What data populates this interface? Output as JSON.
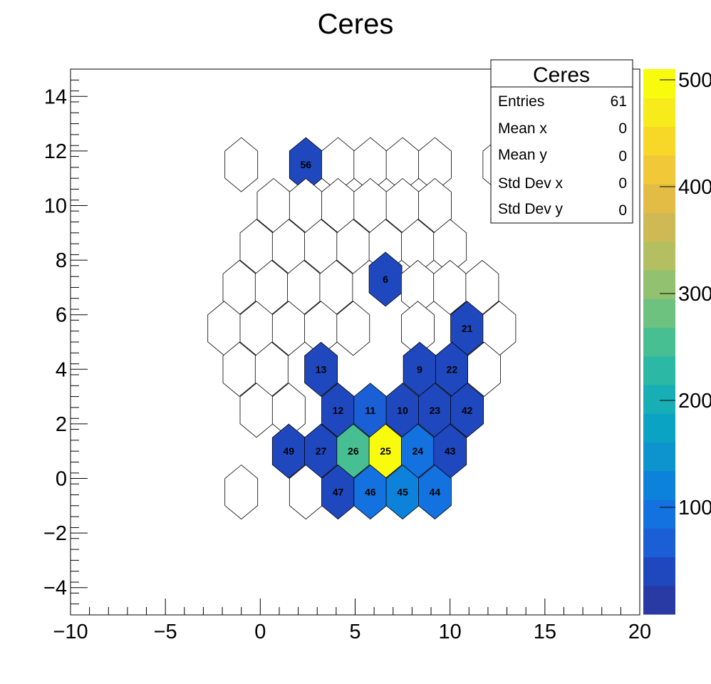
{
  "chart_data": {
    "type": "heatmap",
    "title": "Ceres",
    "xlim": [
      -10,
      20
    ],
    "ylim": [
      -5,
      15
    ],
    "x_ticks": [
      -10,
      -5,
      0,
      5,
      10,
      15,
      20
    ],
    "y_ticks": [
      -4,
      -2,
      0,
      2,
      4,
      6,
      8,
      10,
      12,
      14
    ],
    "x_tick_labels": [
      "−10",
      "−5",
      "0",
      "5",
      "10",
      "15",
      "20"
    ],
    "y_tick_labels": [
      "−4",
      "−2",
      "0",
      "2",
      "4",
      "6",
      "8",
      "10",
      "12",
      "14"
    ],
    "palette": {
      "min": 0,
      "max": 510,
      "ticks": [
        100,
        200,
        300,
        400,
        500
      ],
      "tick_labels": [
        "100",
        "200",
        "300",
        "400",
        "500"
      ],
      "colors": [
        "#2a3aa4",
        "#1f48bf",
        "#1b5fd7",
        "#1371e0",
        "#0d82da",
        "#0d94cf",
        "#0aa3c4",
        "#18aeb5",
        "#2bb8a4",
        "#48bf92",
        "#6dc280",
        "#92c26f",
        "#b3bf61",
        "#cfb955",
        "#e2bc45",
        "#f1c837",
        "#f7d829",
        "#f8eb1c",
        "#f9fb0e"
      ]
    },
    "hexagons": [
      {
        "x": -1.0,
        "y": 11.5,
        "value": 0,
        "label": ""
      },
      {
        "x": 2.4,
        "y": 11.5,
        "value": 30,
        "label": "56"
      },
      {
        "x": 4.1,
        "y": 11.5,
        "value": 0,
        "label": ""
      },
      {
        "x": 5.8,
        "y": 11.5,
        "value": 0,
        "label": ""
      },
      {
        "x": 7.5,
        "y": 11.5,
        "value": 0,
        "label": ""
      },
      {
        "x": 9.2,
        "y": 11.5,
        "value": 0,
        "label": ""
      },
      {
        "x": 0.7,
        "y": 10.0,
        "value": 0,
        "label": ""
      },
      {
        "x": 2.4,
        "y": 10.0,
        "value": 0,
        "label": ""
      },
      {
        "x": 4.1,
        "y": 10.0,
        "value": 0,
        "label": ""
      },
      {
        "x": 5.8,
        "y": 10.0,
        "value": 0,
        "label": ""
      },
      {
        "x": 7.5,
        "y": 10.0,
        "value": 0,
        "label": ""
      },
      {
        "x": 9.2,
        "y": 10.0,
        "value": 0,
        "label": ""
      },
      {
        "x": -0.2,
        "y": 8.5,
        "value": 0,
        "label": ""
      },
      {
        "x": 1.5,
        "y": 8.5,
        "value": 0,
        "label": ""
      },
      {
        "x": 3.2,
        "y": 8.5,
        "value": 0,
        "label": ""
      },
      {
        "x": 4.9,
        "y": 8.5,
        "value": 0,
        "label": ""
      },
      {
        "x": 6.6,
        "y": 8.5,
        "value": 0,
        "label": ""
      },
      {
        "x": 8.3,
        "y": 8.5,
        "value": 0,
        "label": ""
      },
      {
        "x": 10.0,
        "y": 8.5,
        "value": 0,
        "label": ""
      },
      {
        "x": -1.1,
        "y": 7.0,
        "value": 0,
        "label": ""
      },
      {
        "x": 0.6,
        "y": 7.0,
        "value": 0,
        "label": ""
      },
      {
        "x": 2.3,
        "y": 7.0,
        "value": 0,
        "label": ""
      },
      {
        "x": 4.0,
        "y": 7.0,
        "value": 0,
        "label": ""
      },
      {
        "x": 6.6,
        "y": 7.3,
        "value": 30,
        "label": "6"
      },
      {
        "x": 8.3,
        "y": 7.0,
        "value": 0,
        "label": ""
      },
      {
        "x": 10.0,
        "y": 7.0,
        "value": 0,
        "label": ""
      },
      {
        "x": 11.7,
        "y": 7.0,
        "value": 0,
        "label": ""
      },
      {
        "x": -1.9,
        "y": 5.5,
        "value": 0,
        "label": ""
      },
      {
        "x": -0.2,
        "y": 5.5,
        "value": 0,
        "label": ""
      },
      {
        "x": 1.5,
        "y": 5.5,
        "value": 0,
        "label": ""
      },
      {
        "x": 3.2,
        "y": 5.5,
        "value": 0,
        "label": ""
      },
      {
        "x": 4.9,
        "y": 5.5,
        "value": 0,
        "label": ""
      },
      {
        "x": 8.3,
        "y": 5.5,
        "value": 0,
        "label": ""
      },
      {
        "x": 10.9,
        "y": 5.5,
        "value": 30,
        "label": "21"
      },
      {
        "x": 12.6,
        "y": 5.5,
        "value": 0,
        "label": ""
      },
      {
        "x": -1.1,
        "y": 4.0,
        "value": 0,
        "label": ""
      },
      {
        "x": 0.6,
        "y": 4.0,
        "value": 0,
        "label": ""
      },
      {
        "x": 3.2,
        "y": 4.0,
        "value": 30,
        "label": "13"
      },
      {
        "x": 8.4,
        "y": 4.0,
        "value": 30,
        "label": "9"
      },
      {
        "x": 10.1,
        "y": 4.0,
        "value": 30,
        "label": "22"
      },
      {
        "x": 11.8,
        "y": 4.0,
        "value": 0,
        "label": ""
      },
      {
        "x": -0.2,
        "y": 2.5,
        "value": 0,
        "label": ""
      },
      {
        "x": 1.5,
        "y": 2.5,
        "value": 0,
        "label": ""
      },
      {
        "x": 4.1,
        "y": 2.5,
        "value": 30,
        "label": "12"
      },
      {
        "x": 5.8,
        "y": 2.5,
        "value": 70,
        "label": "11"
      },
      {
        "x": 7.5,
        "y": 2.5,
        "value": 30,
        "label": "10"
      },
      {
        "x": 9.2,
        "y": 2.5,
        "value": 30,
        "label": "23"
      },
      {
        "x": 10.9,
        "y": 2.5,
        "value": 30,
        "label": "42"
      },
      {
        "x": 1.5,
        "y": 1.0,
        "value": 30,
        "label": "49"
      },
      {
        "x": 3.2,
        "y": 1.0,
        "value": 30,
        "label": "27"
      },
      {
        "x": 4.9,
        "y": 1.0,
        "value": 260,
        "label": "26"
      },
      {
        "x": 6.6,
        "y": 1.0,
        "value": 510,
        "label": "25"
      },
      {
        "x": 8.3,
        "y": 1.0,
        "value": 100,
        "label": "24"
      },
      {
        "x": 10.0,
        "y": 1.0,
        "value": 30,
        "label": "43"
      },
      {
        "x": -1.0,
        "y": -0.5,
        "value": 0,
        "label": ""
      },
      {
        "x": 2.4,
        "y": -0.5,
        "value": 0,
        "label": ""
      },
      {
        "x": 4.1,
        "y": -0.5,
        "value": 30,
        "label": "47"
      },
      {
        "x": 5.8,
        "y": -0.5,
        "value": 100,
        "label": "46"
      },
      {
        "x": 7.5,
        "y": -0.5,
        "value": 110,
        "label": "45"
      },
      {
        "x": 9.2,
        "y": -0.5,
        "value": 100,
        "label": "44"
      },
      {
        "x": 12.6,
        "y": 11.5,
        "value": 0,
        "label": ""
      }
    ],
    "stats": {
      "title": "Ceres",
      "rows": [
        {
          "label": "Entries",
          "value": "61"
        },
        {
          "label": "Mean x",
          "value": "0"
        },
        {
          "label": "Mean y",
          "value": "0"
        },
        {
          "label": "Std Dev x",
          "value": "0"
        },
        {
          "label": "Std Dev y",
          "value": "0"
        }
      ]
    }
  }
}
